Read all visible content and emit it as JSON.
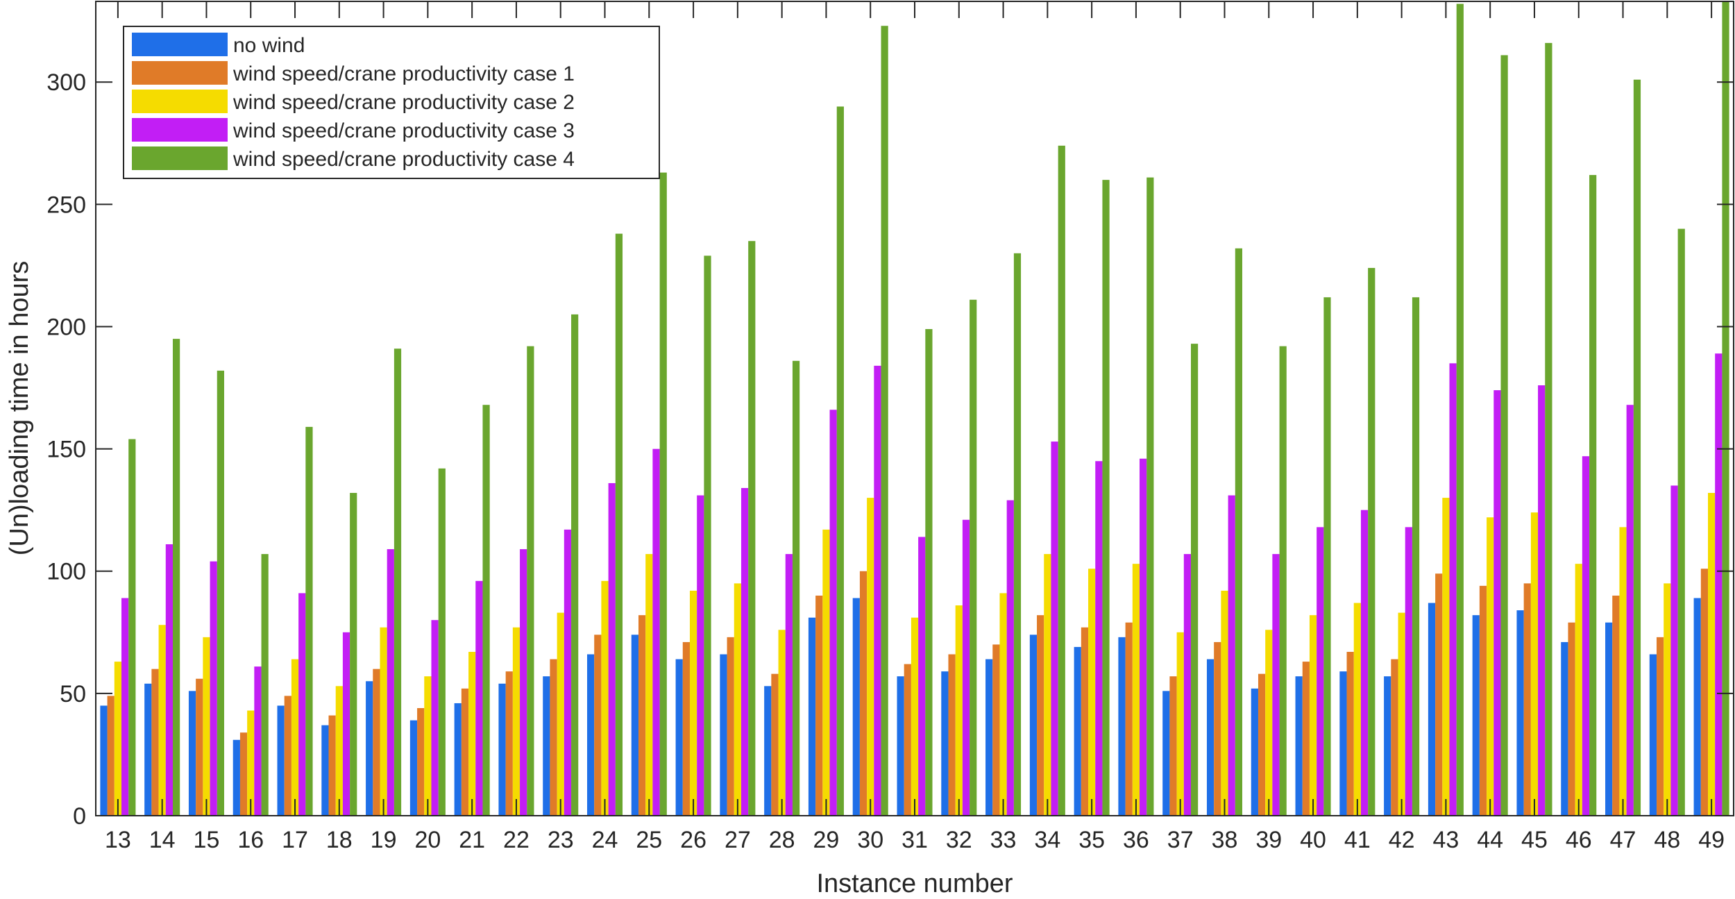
{
  "chart_data": {
    "type": "bar",
    "title": "",
    "xlabel": "Instance number",
    "ylabel": "(Un)loading time in hours",
    "ylim": [
      0,
      333
    ],
    "yticks": [
      0,
      50,
      100,
      150,
      200,
      250,
      300
    ],
    "grid": false,
    "legend_position": "top-left",
    "categories": [
      "13",
      "14",
      "15",
      "16",
      "17",
      "18",
      "19",
      "20",
      "21",
      "22",
      "23",
      "24",
      "25",
      "26",
      "27",
      "28",
      "29",
      "30",
      "31",
      "32",
      "33",
      "34",
      "35",
      "36",
      "37",
      "38",
      "39",
      "40",
      "41",
      "42",
      "43",
      "44",
      "45",
      "46",
      "47",
      "48",
      "49"
    ],
    "series": [
      {
        "name": "no wind",
        "color": "#1f6fe8",
        "values": [
          45,
          54,
          51,
          31,
          45,
          37,
          55,
          39,
          46,
          54,
          57,
          66,
          74,
          64,
          66,
          53,
          81,
          89,
          57,
          59,
          64,
          74,
          69,
          73,
          51,
          64,
          52,
          57,
          59,
          57,
          87,
          82,
          84,
          71,
          79,
          66,
          89
        ]
      },
      {
        "name": "wind speed/crane productivity case 1",
        "color": "#e07b28",
        "values": [
          49,
          60,
          56,
          34,
          49,
          41,
          60,
          44,
          52,
          59,
          64,
          74,
          82,
          71,
          73,
          58,
          90,
          100,
          62,
          66,
          70,
          82,
          77,
          79,
          57,
          71,
          58,
          63,
          67,
          64,
          99,
          94,
          95,
          79,
          90,
          73,
          101
        ]
      },
      {
        "name": "wind speed/crane productivity case 2",
        "color": "#f5dc00",
        "values": [
          63,
          78,
          73,
          43,
          64,
          53,
          77,
          57,
          67,
          77,
          83,
          96,
          107,
          92,
          95,
          76,
          117,
          130,
          81,
          86,
          91,
          107,
          101,
          103,
          75,
          92,
          76,
          82,
          87,
          83,
          130,
          122,
          124,
          103,
          118,
          95,
          132
        ]
      },
      {
        "name": "wind speed/crane productivity case 3",
        "color": "#c21ef5",
        "values": [
          89,
          111,
          104,
          61,
          91,
          75,
          109,
          80,
          96,
          109,
          117,
          136,
          150,
          131,
          134,
          107,
          166,
          184,
          114,
          121,
          129,
          153,
          145,
          146,
          107,
          131,
          107,
          118,
          125,
          118,
          185,
          174,
          176,
          147,
          168,
          135,
          189
        ]
      },
      {
        "name": "wind speed/crane productivity case 4",
        "color": "#6aa62e",
        "values": [
          154,
          195,
          182,
          107,
          159,
          132,
          191,
          142,
          168,
          192,
          205,
          238,
          263,
          229,
          235,
          186,
          290,
          323,
          199,
          211,
          230,
          274,
          260,
          261,
          193,
          232,
          192,
          212,
          224,
          212,
          332,
          311,
          316,
          262,
          301,
          240,
          333
        ]
      }
    ]
  }
}
